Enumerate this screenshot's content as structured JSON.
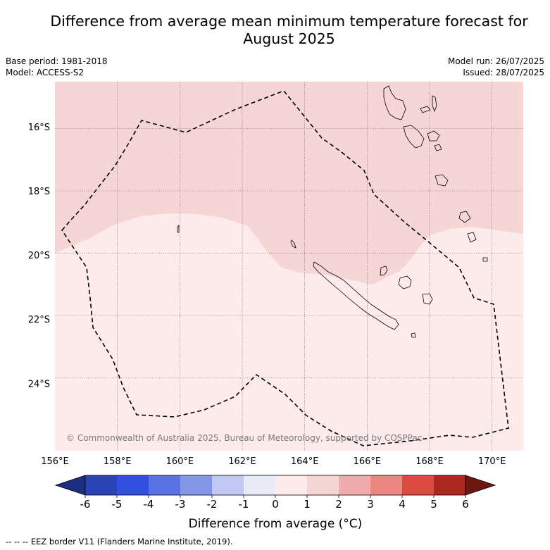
{
  "title": "Difference from average mean minimum temperature forecast for August 2025",
  "title_line1": "Difference from average mean minimum temperature forecast for",
  "title_line2": "August 2025",
  "base_period": "Base period: 1981-2018",
  "model": "Model: ACCESS-S2",
  "model_run": "Model run: 26/07/2025",
  "issued": "Issued: 28/07/2025",
  "credit": "© Commonwealth of Australia 2025, Bureau of Meteorology, supported by COSPPac",
  "footer": "--  --  -- EEZ border V11 (Flanders Marine Institute, 2019).",
  "map": {
    "lon_range": [
      156,
      171
    ],
    "lat_range": [
      -26.1,
      -14.6
    ],
    "lon_ticks": [
      "156°E",
      "158°E",
      "160°E",
      "162°E",
      "164°E",
      "166°E",
      "168°E",
      "170°E"
    ],
    "lat_ticks": [
      "16°S",
      "18°S",
      "20°S",
      "22°S",
      "24°S"
    ],
    "regions": [
      {
        "name": "0 to 1 °C",
        "color": "#fcebea"
      },
      {
        "name": "1 to 2 °C",
        "color": "#f5d6d5"
      }
    ],
    "gridlines": true
  },
  "colorbar": {
    "title": "Difference from average (°C)",
    "ticks": [
      "-6",
      "-5",
      "-4",
      "-3",
      "-2",
      "-1",
      "0",
      "1",
      "2",
      "3",
      "4",
      "5",
      "6"
    ],
    "colors": [
      "#1a2f82",
      "#2a44b5",
      "#3150e0",
      "#5a72e3",
      "#8496e8",
      "#c1c8f2",
      "#e9ebf8",
      "#fcebea",
      "#f5d6d5",
      "#efacaa",
      "#e98780",
      "#dc4a40",
      "#ab2720",
      "#6e1712"
    ]
  }
}
